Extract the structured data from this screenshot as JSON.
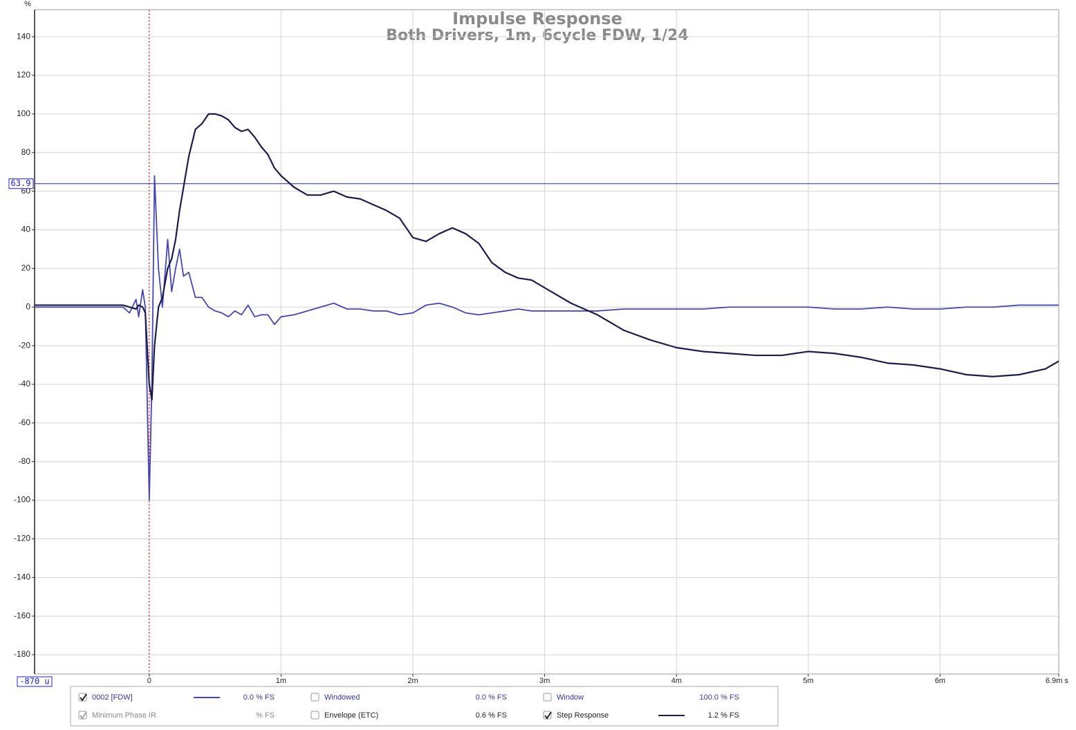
{
  "chart_data": {
    "type": "line",
    "title": "Impulse Response",
    "subtitle": "Both Drivers, 1m, 6cycle FDW, 1/24",
    "y_label": "%",
    "xlim": [
      -0.87,
      6.9
    ],
    "ylim": [
      -190,
      154
    ],
    "xticks": [
      {
        "value": -0.87,
        "label": "-870 u"
      },
      0,
      {
        "value": 1,
        "label": "1m"
      },
      {
        "value": 2,
        "label": "2m"
      },
      {
        "value": 3,
        "label": "3m"
      },
      {
        "value": 4,
        "label": "4m"
      },
      {
        "value": 5,
        "label": "5m"
      },
      {
        "value": 6,
        "label": "6m"
      },
      {
        "value": 6.9,
        "label": "6.9m s"
      }
    ],
    "yticks": [
      -180,
      -160,
      -140,
      -120,
      -100,
      -80,
      -60,
      -40,
      -20,
      0,
      20,
      40,
      60,
      80,
      100,
      120,
      140
    ],
    "grid": true,
    "cursor_y": 63.9,
    "cursor_color": "#2020d0",
    "marker_x": 0,
    "marker_color": "#d02020",
    "x": [
      -0.87,
      -0.2,
      -0.15,
      -0.1,
      -0.08,
      -0.05,
      -0.03,
      0,
      0.02,
      0.04,
      0.07,
      0.1,
      0.14,
      0.17,
      0.2,
      0.23,
      0.26,
      0.3,
      0.35,
      0.4,
      0.45,
      0.5,
      0.55,
      0.6,
      0.65,
      0.7,
      0.75,
      0.8,
      0.85,
      0.9,
      0.95,
      1.0,
      1.1,
      1.2,
      1.3,
      1.4,
      1.5,
      1.6,
      1.7,
      1.8,
      1.9,
      2.0,
      2.1,
      2.2,
      2.3,
      2.4,
      2.5,
      2.6,
      2.7,
      2.8,
      2.9,
      3.0,
      3.2,
      3.4,
      3.6,
      3.8,
      4.0,
      4.2,
      4.4,
      4.6,
      4.8,
      5.0,
      5.2,
      5.4,
      5.6,
      5.8,
      6.0,
      6.2,
      6.4,
      6.6,
      6.8,
      6.9
    ],
    "series": [
      {
        "name": "0002 [FDW]",
        "color": "#4545b5",
        "readout": "0.0 % FS",
        "checked": true,
        "values": [
          0,
          0,
          -3,
          4,
          -5,
          9,
          0,
          -100,
          -40,
          68,
          20,
          0,
          35,
          8,
          20,
          30,
          16,
          18,
          5,
          5,
          0,
          -2,
          -3,
          -5,
          -2,
          -4,
          1,
          -5,
          -4,
          -4,
          -9,
          -5,
          -4,
          -2,
          0,
          2,
          -1,
          -1,
          -2,
          -2,
          -4,
          -3,
          1,
          2,
          0,
          -3,
          -4,
          -3,
          -2,
          -1,
          -2,
          -2,
          -2,
          -2,
          -1,
          -1,
          -1,
          -1,
          0,
          0,
          0,
          0,
          -1,
          -1,
          0,
          -1,
          -1,
          0,
          0,
          1,
          1,
          1
        ]
      },
      {
        "name": "Step Response",
        "color": "#1c1c4c",
        "readout": "1.2 % FS",
        "checked": true,
        "values": [
          1,
          1,
          0,
          -1,
          1,
          0,
          -3,
          -40,
          -48,
          -20,
          0,
          5,
          20,
          25,
          35,
          50,
          62,
          78,
          92,
          95,
          100,
          100,
          99,
          97,
          93,
          91,
          92,
          88,
          83,
          79,
          72,
          68,
          62,
          58,
          58,
          60,
          57,
          56,
          53,
          50,
          46,
          36,
          34,
          38,
          41,
          38,
          33,
          23,
          18,
          15,
          14,
          10,
          2,
          -4,
          -12,
          -17,
          -21,
          -23,
          -24,
          -25,
          -25,
          -23,
          -24,
          -26,
          -29,
          -30,
          -32,
          -35,
          -36,
          -35,
          -32,
          -28
        ]
      }
    ],
    "legend_panel": [
      {
        "label": "Windowed",
        "readout": "0.0 % FS",
        "checked": false,
        "enabled": true
      },
      {
        "label": "Window",
        "readout": "100.0 % FS",
        "checked": false,
        "enabled": true
      },
      {
        "label": "Minimum Phase IR",
        "readout": "% FS",
        "checked": true,
        "enabled": false
      },
      {
        "label": "Envelope (ETC)",
        "readout": "0.6 % FS",
        "checked": false,
        "enabled": true
      }
    ]
  }
}
